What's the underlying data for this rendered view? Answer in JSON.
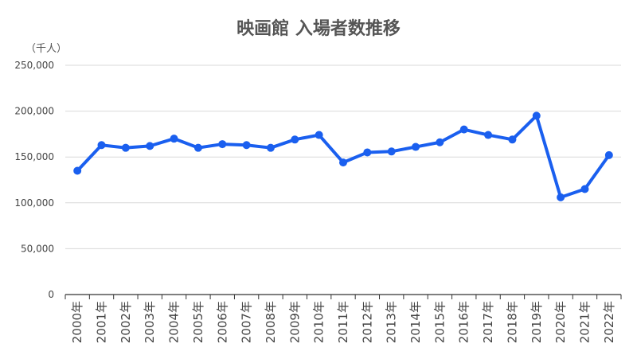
{
  "chart_data": {
    "type": "line",
    "title": "映画館 入場者数推移",
    "unit_label": "（千人）",
    "xlabel": "",
    "ylabel": "",
    "ylim": [
      0,
      250000
    ],
    "yticks": [
      0,
      50000,
      100000,
      150000,
      200000,
      250000
    ],
    "ytick_labels": [
      "0",
      "50,000",
      "100,000",
      "150,000",
      "200,000",
      "250,000"
    ],
    "grid": true,
    "legend": "none",
    "categories": [
      "2000年",
      "2001年",
      "2002年",
      "2003年",
      "2004年",
      "2005年",
      "2006年",
      "2007年",
      "2008年",
      "2009年",
      "2010年",
      "2011年",
      "2012年",
      "2013年",
      "2014年",
      "2015年",
      "2016年",
      "2017年",
      "2018年",
      "2019年",
      "2020年",
      "2021年",
      "2022年"
    ],
    "series": [
      {
        "values": [
          135000,
          163000,
          160000,
          162000,
          170000,
          160000,
          164000,
          163000,
          160000,
          169000,
          174000,
          144000,
          155000,
          156000,
          161000,
          166000,
          180000,
          174000,
          169000,
          195000,
          106000,
          115000,
          152000
        ]
      }
    ],
    "colors": {
      "line": "#1a5fef",
      "grid": "#d9d9d9",
      "axis": "#333333",
      "text": "#444444"
    }
  }
}
